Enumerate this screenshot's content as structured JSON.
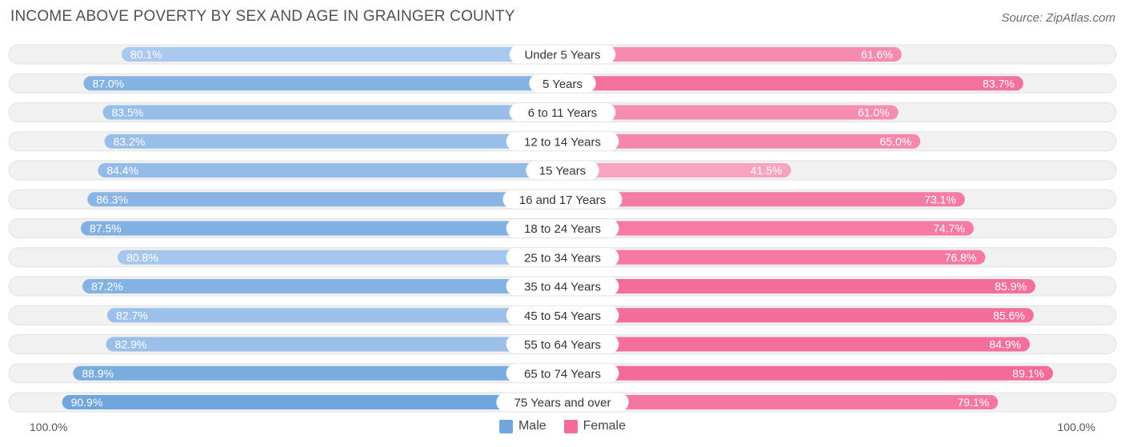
{
  "title": "INCOME ABOVE POVERTY BY SEX AND AGE IN GRAINGER COUNTY",
  "source": "Source: ZipAtlas.com",
  "colors": {
    "male": "#6fa6dd",
    "female": "#f46a98",
    "male_light": "#a9c9ee",
    "female_light": "#f8a3c0",
    "track": "#f1f1f1"
  },
  "axis": {
    "left_label": "100.0%",
    "right_label": "100.0%"
  },
  "legend": {
    "male": "Male",
    "female": "Female"
  },
  "chart_data": {
    "type": "bar",
    "orientation": "horizontal-diverging",
    "title": "INCOME ABOVE POVERTY BY SEX AND AGE IN GRAINGER COUNTY",
    "xlim": [
      -100,
      100
    ],
    "categories": [
      "Under 5 Years",
      "5 Years",
      "6 to 11 Years",
      "12 to 14 Years",
      "15 Years",
      "16 and 17 Years",
      "18 to 24 Years",
      "25 to 34 Years",
      "35 to 44 Years",
      "45 to 54 Years",
      "55 to 64 Years",
      "65 to 74 Years",
      "75 Years and over"
    ],
    "series": [
      {
        "name": "Male",
        "values": [
          80.1,
          87.0,
          83.5,
          83.2,
          84.4,
          86.3,
          87.5,
          80.8,
          87.2,
          82.7,
          82.9,
          88.9,
          90.9
        ],
        "labels": [
          "80.1%",
          "87.0%",
          "83.5%",
          "83.2%",
          "84.4%",
          "86.3%",
          "87.5%",
          "80.8%",
          "87.2%",
          "82.7%",
          "82.9%",
          "88.9%",
          "90.9%"
        ]
      },
      {
        "name": "Female",
        "values": [
          61.6,
          83.7,
          61.0,
          65.0,
          41.5,
          73.1,
          74.7,
          76.8,
          85.9,
          85.6,
          84.9,
          89.1,
          79.1
        ],
        "labels": [
          "61.6%",
          "83.7%",
          "61.0%",
          "65.0%",
          "41.5%",
          "73.1%",
          "74.7%",
          "76.8%",
          "85.9%",
          "85.6%",
          "84.9%",
          "89.1%",
          "79.1%"
        ]
      }
    ],
    "legend_position": "bottom-center"
  }
}
